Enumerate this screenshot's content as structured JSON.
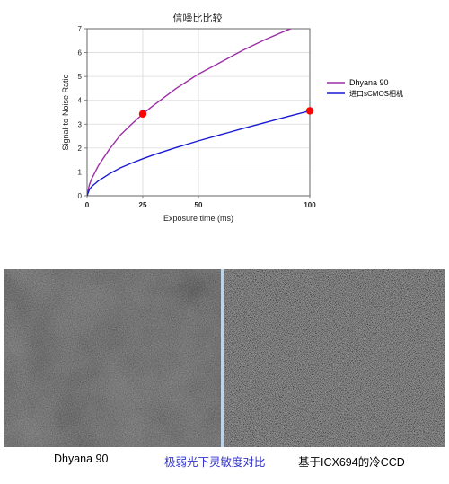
{
  "chart_data": {
    "type": "line",
    "title": "信噪比比较",
    "xlabel": "Exposure time (ms)",
    "ylabel": "Signal-to-Noise Ratio",
    "xlim": [
      0,
      100
    ],
    "ylim": [
      0,
      7
    ],
    "x_ticks": [
      0,
      25,
      50,
      100
    ],
    "y_ticks": [
      0,
      1,
      2,
      3,
      4,
      5,
      6,
      7
    ],
    "grid": true,
    "legend_position": "right",
    "series": [
      {
        "name": "Dhyana 90",
        "color": "#9b2fa6",
        "x": [
          0,
          1,
          2,
          5,
          10,
          15,
          20,
          25,
          30,
          40,
          50,
          60,
          70,
          80,
          90,
          100
        ],
        "y": [
          0,
          0.45,
          0.7,
          1.25,
          1.95,
          2.55,
          3.0,
          3.43,
          3.8,
          4.5,
          5.1,
          5.6,
          6.1,
          6.55,
          6.95,
          7.3
        ]
      },
      {
        "name": "进口sCMOS相机",
        "color": "#1a1ad4",
        "x": [
          0,
          1,
          2,
          5,
          10,
          15,
          20,
          25,
          30,
          40,
          50,
          60,
          70,
          80,
          90,
          100
        ],
        "y": [
          0,
          0.25,
          0.38,
          0.62,
          0.92,
          1.17,
          1.37,
          1.55,
          1.72,
          2.02,
          2.3,
          2.56,
          2.82,
          3.07,
          3.32,
          3.56
        ]
      }
    ],
    "markers": [
      {
        "x": 25,
        "y": 3.43,
        "color": "#ff0000"
      },
      {
        "x": 100,
        "y": 3.56,
        "color": "#ff0000"
      }
    ]
  },
  "images": {
    "left_caption": "Dhyana 90",
    "center_caption": "极弱光下灵敏度对比",
    "right_caption": "基于ICX694的冷CCD"
  }
}
